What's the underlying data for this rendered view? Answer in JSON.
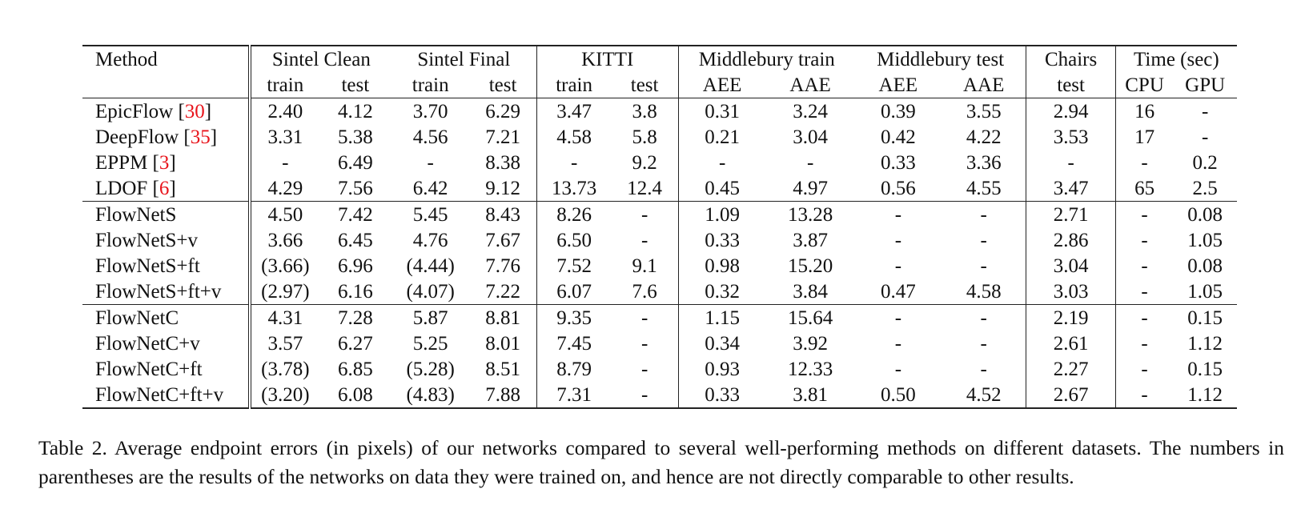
{
  "table": {
    "header": {
      "method_label": "Method",
      "groups": {
        "sintel_clean": "Sintel Clean",
        "sintel_final": "Sintel Final",
        "kitti": "KITTI",
        "middlebury_train": "Middlebury train",
        "middlebury_test": "Middlebury test",
        "chairs": "Chairs",
        "time": "Time (sec)"
      },
      "subheaders": [
        "train",
        "test",
        "train",
        "test",
        "train",
        "test",
        "AEE",
        "AAE",
        "AEE",
        "AAE",
        "test",
        "CPU",
        "GPU"
      ]
    },
    "rows": [
      {
        "method": "EpicFlow [",
        "ref": "30",
        "close": "]",
        "values": [
          "2.40",
          "4.12",
          "3.70",
          "6.29",
          "3.47",
          "3.8",
          "0.31",
          "3.24",
          "0.39",
          "3.55",
          "2.94",
          "16",
          "-"
        ]
      },
      {
        "method": "DeepFlow [",
        "ref": "35",
        "close": "]",
        "values": [
          "3.31",
          "5.38",
          "4.56",
          "7.21",
          "4.58",
          "5.8",
          "0.21",
          "3.04",
          "0.42",
          "4.22",
          "3.53",
          "17",
          "-"
        ]
      },
      {
        "method": "EPPM [",
        "ref": "3",
        "close": "]",
        "values": [
          "-",
          "6.49",
          "-",
          "8.38",
          "-",
          "9.2",
          "-",
          "-",
          "0.33",
          "3.36",
          "-",
          "-",
          "0.2"
        ]
      },
      {
        "method": "LDOF [",
        "ref": "6",
        "close": "]",
        "values": [
          "4.29",
          "7.56",
          "6.42",
          "9.12",
          "13.73",
          "12.4",
          "0.45",
          "4.97",
          "0.56",
          "4.55",
          "3.47",
          "65",
          "2.5"
        ]
      },
      {
        "method": "FlowNetS",
        "values": [
          "4.50",
          "7.42",
          "5.45",
          "8.43",
          "8.26",
          "-",
          "1.09",
          "13.28",
          "-",
          "-",
          "2.71",
          "-",
          "0.08"
        ]
      },
      {
        "method": "FlowNetS+v",
        "values": [
          "3.66",
          "6.45",
          "4.76",
          "7.67",
          "6.50",
          "-",
          "0.33",
          "3.87",
          "-",
          "-",
          "2.86",
          "-",
          "1.05"
        ]
      },
      {
        "method": "FlowNetS+ft",
        "values": [
          "(3.66)",
          "6.96",
          "(4.44)",
          "7.76",
          "7.52",
          "9.1",
          "0.98",
          "15.20",
          "-",
          "-",
          "3.04",
          "-",
          "0.08"
        ]
      },
      {
        "method": "FlowNetS+ft+v",
        "values": [
          "(2.97)",
          "6.16",
          "(4.07)",
          "7.22",
          "6.07",
          "7.6",
          "0.32",
          "3.84",
          "0.47",
          "4.58",
          "3.03",
          "-",
          "1.05"
        ]
      },
      {
        "method": "FlowNetC",
        "values": [
          "4.31",
          "7.28",
          "5.87",
          "8.81",
          "9.35",
          "-",
          "1.15",
          "15.64",
          "-",
          "-",
          "2.19",
          "-",
          "0.15"
        ]
      },
      {
        "method": "FlowNetC+v",
        "values": [
          "3.57",
          "6.27",
          "5.25",
          "8.01",
          "7.45",
          "-",
          "0.34",
          "3.92",
          "-",
          "-",
          "2.61",
          "-",
          "1.12"
        ]
      },
      {
        "method": "FlowNetC+ft",
        "values": [
          "(3.78)",
          "6.85",
          "(5.28)",
          "8.51",
          "8.79",
          "-",
          "0.93",
          "12.33",
          "-",
          "-",
          "2.27",
          "-",
          "0.15"
        ]
      },
      {
        "method": "FlowNetC+ft+v",
        "values": [
          "(3.20)",
          "6.08",
          "(4.83)",
          "7.88",
          "7.31",
          "-",
          "0.33",
          "3.81",
          "0.50",
          "4.52",
          "2.67",
          "-",
          "1.12"
        ]
      }
    ]
  },
  "caption": "Table 2. Average endpoint errors (in pixels) of our networks compared to several well-performing methods on different datasets. The numbers in parentheses are the results of the networks on data they were trained on, and hence are not directly comparable to other results.",
  "colors": {
    "reference": "#e8141b",
    "rule": "#222222",
    "text": "#111111"
  }
}
